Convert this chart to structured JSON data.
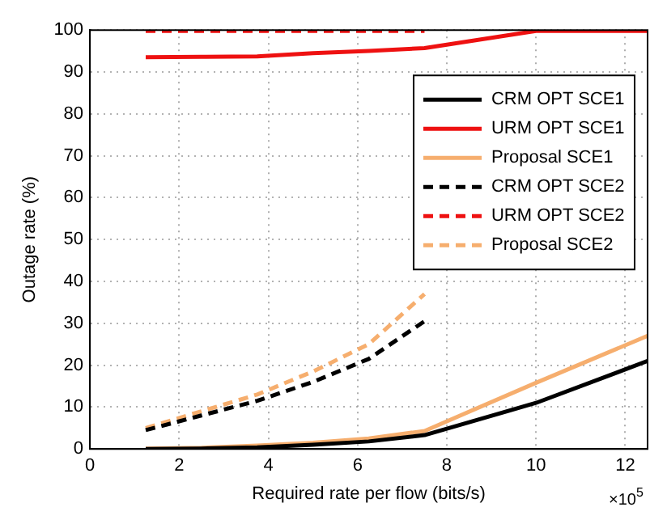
{
  "chart_data": {
    "type": "line",
    "xlabel": "Required rate per flow (bits/s)",
    "ylabel": "Outage rate (%)",
    "xlim": [
      0,
      12.5
    ],
    "xticks": [
      0,
      2,
      4,
      6,
      8,
      10,
      12
    ],
    "ylim": [
      0,
      100
    ],
    "yticks": [
      0,
      10,
      20,
      30,
      40,
      50,
      60,
      70,
      80,
      90,
      100
    ],
    "grid": true,
    "legend": "top right",
    "marker": "none",
    "annotations": [
      "×10$^{5}$"
    ],
    "series": [
      {
        "name": "CRM OPT SCE1",
        "color": "#000000",
        "line_style": "solid",
        "x": [
          1.25,
          2.5,
          3.75,
          5,
          6.25,
          7.5,
          10,
          12.5
        ],
        "values": [
          0,
          0.1,
          0.4,
          1,
          1.8,
          3.3,
          11,
          21
        ]
      },
      {
        "name": "URM OPT SCE1",
        "color": "#ee1111",
        "line_style": "solid",
        "x": [
          1.25,
          2.5,
          3.75,
          5,
          6.25,
          7.5,
          10,
          12.5
        ],
        "values": [
          93.5,
          93.6,
          93.7,
          94.5,
          95,
          95.7,
          99.8,
          99.8
        ]
      },
      {
        "name": "Proposal SCE1",
        "color": "#f6ae6e",
        "line_style": "solid",
        "x": [
          1.25,
          2.5,
          3.75,
          5,
          6.25,
          7.5,
          10,
          12.5
        ],
        "values": [
          0.1,
          0.3,
          0.8,
          1.5,
          2.5,
          4.3,
          15.8,
          27
        ]
      },
      {
        "name": "CRM OPT SCE2",
        "color": "#000000",
        "line_style": "dashed",
        "x": [
          1.25,
          2.5,
          3.75,
          5,
          6.25,
          7.5
        ],
        "values": [
          4.5,
          8,
          11.5,
          16,
          21.5,
          30.5
        ]
      },
      {
        "name": "URM OPT SCE2",
        "color": "#ee1111",
        "line_style": "dashed",
        "x": [
          1.25,
          2.5,
          3.75,
          5,
          6.25,
          7.5
        ],
        "values": [
          99.8,
          99.8,
          99.8,
          99.8,
          99.8,
          99.8
        ]
      },
      {
        "name": "Proposal SCE2",
        "color": "#f6ae6e",
        "line_style": "dashed",
        "x": [
          1.25,
          2.5,
          3.75,
          5,
          6.25,
          7.5
        ],
        "values": [
          5,
          9,
          13,
          18.5,
          25,
          37
        ]
      }
    ]
  }
}
